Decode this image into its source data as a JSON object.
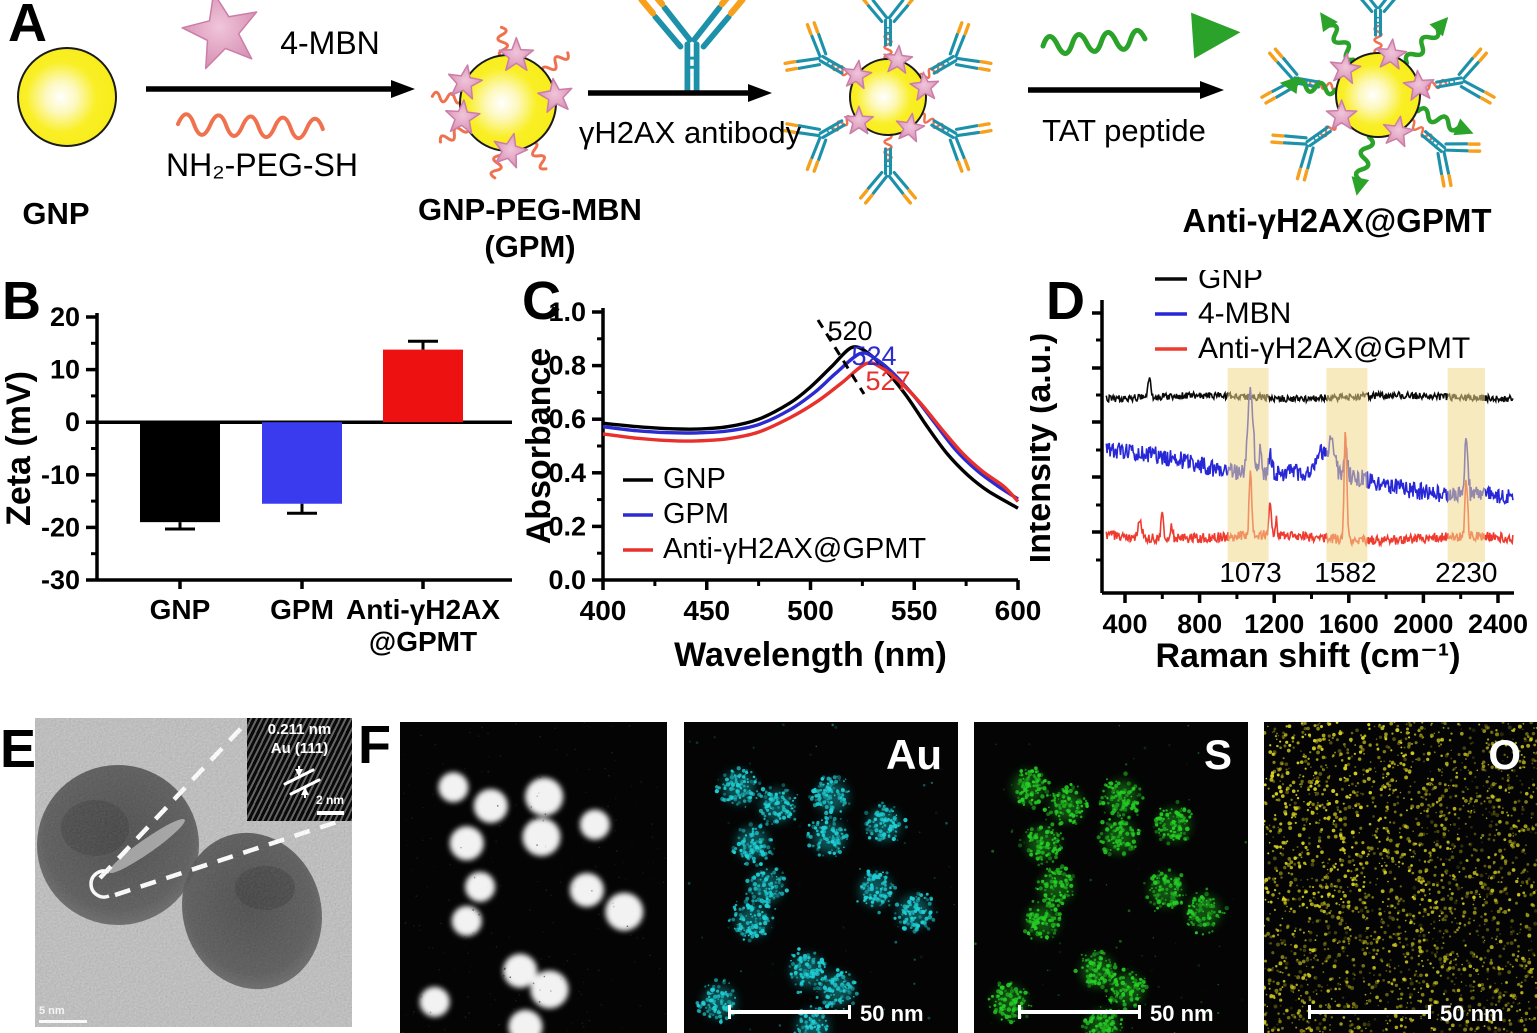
{
  "panels": {
    "A": {
      "letter": "A"
    },
    "B": {
      "letter": "B"
    },
    "C": {
      "letter": "C"
    },
    "D": {
      "letter": "D"
    },
    "E": {
      "letter": "E"
    },
    "F": {
      "letter": "F"
    }
  },
  "schematic": {
    "gnp_label": "GNP",
    "mbn_label": "4-MBN",
    "peg_label": "NH₂-PEG-SH",
    "gpm_label_line1": "GNP-PEG-MBN",
    "gpm_label_line2": "(GPM)",
    "antibody_label": "γH2AX antibody",
    "tat_label": "TAT peptide",
    "product_label": "Anti-γH2AX@GPMT",
    "colors": {
      "gnp_yellow": "#f6ea10",
      "star_pink": "#dd9dbd",
      "peg_orange": "#f0714e",
      "antibody_teal": "#1d91aa",
      "antibody_tip_orange": "#f6a01e",
      "tat_green": "#2ba32b"
    }
  },
  "chart_data": [
    {
      "id": "zeta",
      "panel": "B",
      "type": "bar",
      "ylabel": "Zeta (mV)",
      "ylim": [
        -30,
        20
      ],
      "yticks": [
        "20",
        "10",
        "0",
        "-10",
        "-20",
        "-30"
      ],
      "ytick_values": [
        20,
        10,
        0,
        -10,
        -20,
        -30
      ],
      "categories": [
        [
          "GNP"
        ],
        [
          "GPM"
        ],
        [
          "Anti-γH2AX",
          "@GPMT"
        ]
      ],
      "values": [
        -19,
        -15.5,
        13.8
      ],
      "errors": [
        1.3,
        1.8,
        1.6
      ],
      "bar_colors": [
        "#000000",
        "#3a3aee",
        "#ee1111"
      ],
      "grid": false
    },
    {
      "id": "uvvis",
      "panel": "C",
      "type": "line",
      "xlabel": "Wavelength (nm)",
      "ylabel": "Absorbance",
      "xlim": [
        400,
        600
      ],
      "ylim": [
        0.0,
        1.0
      ],
      "xticks": [
        "400",
        "450",
        "500",
        "550",
        "600"
      ],
      "xtick_values": [
        400,
        450,
        500,
        550,
        600
      ],
      "yticks": [
        "0.0",
        "0.2",
        "0.4",
        "0.6",
        "0.8",
        "1.0"
      ],
      "ytick_values": [
        0.0,
        0.2,
        0.4,
        0.6,
        0.8,
        1.0
      ],
      "legend_position": "lower-left",
      "series": [
        {
          "name": "GNP",
          "color": "#000000",
          "peak_label": "520",
          "peak_nm": 520,
          "points": [
            [
              400,
              0.585
            ],
            [
              415,
              0.573
            ],
            [
              430,
              0.565
            ],
            [
              445,
              0.563
            ],
            [
              460,
              0.572
            ],
            [
              475,
              0.6
            ],
            [
              490,
              0.66
            ],
            [
              500,
              0.72
            ],
            [
              510,
              0.795
            ],
            [
              520,
              0.868
            ],
            [
              528,
              0.845
            ],
            [
              536,
              0.785
            ],
            [
              546,
              0.69
            ],
            [
              556,
              0.575
            ],
            [
              566,
              0.47
            ],
            [
              576,
              0.39
            ],
            [
              586,
              0.33
            ],
            [
              600,
              0.268
            ]
          ]
        },
        {
          "name": "GPM",
          "color": "#2b2bd0",
          "peak_label": "524",
          "peak_nm": 524,
          "points": [
            [
              400,
              0.572
            ],
            [
              415,
              0.558
            ],
            [
              430,
              0.55
            ],
            [
              445,
              0.549
            ],
            [
              460,
              0.556
            ],
            [
              475,
              0.58
            ],
            [
              490,
              0.635
            ],
            [
              502,
              0.7
            ],
            [
              512,
              0.77
            ],
            [
              524,
              0.845
            ],
            [
              532,
              0.822
            ],
            [
              540,
              0.77
            ],
            [
              550,
              0.685
            ],
            [
              560,
              0.585
            ],
            [
              570,
              0.485
            ],
            [
              580,
              0.41
            ],
            [
              590,
              0.352
            ],
            [
              600,
              0.302
            ]
          ]
        },
        {
          "name": "Anti-γH2AX@GPMT",
          "color": "#e8302c",
          "peak_label": "527",
          "peak_nm": 527,
          "points": [
            [
              400,
              0.545
            ],
            [
              415,
              0.53
            ],
            [
              430,
              0.521
            ],
            [
              445,
              0.519
            ],
            [
              460,
              0.527
            ],
            [
              475,
              0.552
            ],
            [
              490,
              0.605
            ],
            [
              503,
              0.665
            ],
            [
              515,
              0.735
            ],
            [
              527,
              0.808
            ],
            [
              535,
              0.788
            ],
            [
              543,
              0.74
            ],
            [
              553,
              0.66
            ],
            [
              563,
              0.565
            ],
            [
              573,
              0.475
            ],
            [
              583,
              0.405
            ],
            [
              593,
              0.35
            ],
            [
              600,
              0.293
            ]
          ]
        }
      ]
    },
    {
      "id": "raman",
      "panel": "D",
      "type": "line",
      "xlabel": "Raman shift (cm⁻¹)",
      "ylabel": "Intensity (a.u.)",
      "xlim": [
        300,
        2480
      ],
      "xticks": [
        "400",
        "800",
        "1200",
        "1600",
        "2000",
        "2400"
      ],
      "xtick_values": [
        400,
        800,
        1200,
        1600,
        2000,
        2400
      ],
      "yticks": [],
      "highlight_bands": [
        [
          950,
          1170
        ],
        [
          1480,
          1700
        ],
        [
          2130,
          2330
        ]
      ],
      "band_color": "#f1d98b",
      "peak_labels": [
        "1073",
        "1582",
        "2230"
      ],
      "peak_label_positions": [
        1073,
        1582,
        2230
      ],
      "series": [
        {
          "name": "GNP",
          "color": "#0a0a0a",
          "base": [
            127,
            127
          ],
          "noise": 3.5,
          "peaks": [
            [
              530,
              20,
              7
            ]
          ]
        },
        {
          "name": "4-MBN",
          "color": "#2727d8",
          "base": [
            183,
            228
          ],
          "noise": 9,
          "peaks": [
            [
              1073,
              80,
              14
            ],
            [
              1125,
              22,
              8
            ],
            [
              1180,
              16,
              10
            ],
            [
              1455,
              22,
              22
            ],
            [
              1510,
              34,
              16
            ],
            [
              1582,
              26,
              9
            ],
            [
              2230,
              54,
              9
            ]
          ]
        },
        {
          "name": "Anti-γH2AX@GPMT",
          "color": "#ef3b2f",
          "base": [
            266,
            269
          ],
          "noise": 5,
          "peaks": [
            [
              480,
              14,
              10
            ],
            [
              600,
              24,
              7
            ],
            [
              650,
              12,
              6
            ],
            [
              1073,
              62,
              7
            ],
            [
              1178,
              30,
              6
            ],
            [
              1210,
              16,
              5
            ],
            [
              1582,
              108,
              7
            ],
            [
              2230,
              57,
              7
            ]
          ]
        }
      ]
    }
  ],
  "panelE": {
    "inset_line1": "0.211 nm",
    "inset_line2": "Au (111)",
    "inset_scale_label": "2 nm",
    "scale_label": "5 nm"
  },
  "panelF": {
    "scale_label": "50 nm",
    "maps": [
      {
        "label": "",
        "color": "#ffffff",
        "kind": "haadf"
      },
      {
        "label": "Au",
        "color": "#1fd0d6",
        "kind": "dots"
      },
      {
        "label": "S",
        "color": "#25cd25",
        "kind": "dots"
      },
      {
        "label": "O",
        "color": "#d3cd1e",
        "kind": "noise"
      }
    ],
    "particles": [
      [
        0.2,
        0.21
      ],
      [
        0.34,
        0.27
      ],
      [
        0.54,
        0.24
      ],
      [
        0.73,
        0.33
      ],
      [
        0.25,
        0.39
      ],
      [
        0.53,
        0.37
      ],
      [
        0.3,
        0.53
      ],
      [
        0.7,
        0.54
      ],
      [
        0.84,
        0.61
      ],
      [
        0.25,
        0.64
      ],
      [
        0.45,
        0.8
      ],
      [
        0.56,
        0.86
      ],
      [
        0.13,
        0.9
      ],
      [
        0.47,
        0.98
      ]
    ]
  }
}
